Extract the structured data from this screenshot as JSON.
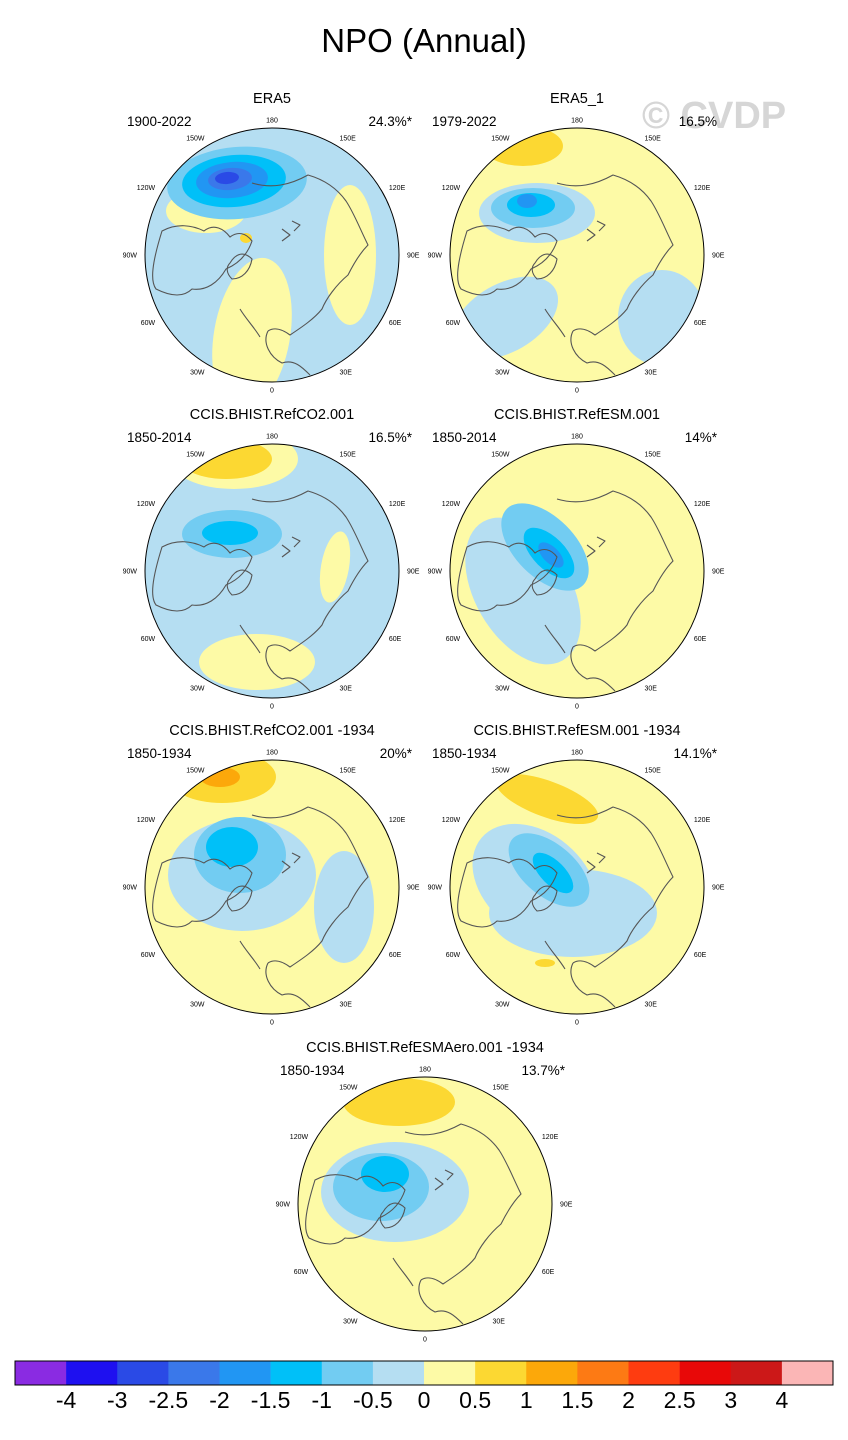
{
  "title": "NPO (Annual)",
  "watermark": "© CVDP",
  "chart_data": {
    "type": "polar-map",
    "variable": "NPO sea level pressure anomaly pattern",
    "season": "Annual",
    "longitude_labels": [
      "180",
      "150E",
      "120E",
      "90E",
      "60E",
      "30E",
      "0",
      "30W",
      "60W",
      "90W",
      "120W",
      "150W"
    ],
    "panels": [
      {
        "id": "era5",
        "title": "ERA5",
        "years": "1900-2022",
        "variance": "24.3%*"
      },
      {
        "id": "era5_1",
        "title": "ERA5_1",
        "years": "1979-2022",
        "variance": "16.5%"
      },
      {
        "id": "refco2",
        "title": "CCIS.BHIST.RefCO2.001",
        "years": "1850-2014",
        "variance": "16.5%*"
      },
      {
        "id": "refesm",
        "title": "CCIS.BHIST.RefESM.001",
        "years": "1850-2014",
        "variance": "14%*"
      },
      {
        "id": "refco2_1934",
        "title": "CCIS.BHIST.RefCO2.001 -1934",
        "years": "1850-1934",
        "variance": "20%*"
      },
      {
        "id": "refesm_1934",
        "title": "CCIS.BHIST.RefESM.001 -1934",
        "years": "1850-1934",
        "variance": "14.1%*"
      },
      {
        "id": "refesmaero_1934",
        "title": "CCIS.BHIST.RefESMAero.001 -1934",
        "years": "1850-1934",
        "variance": "13.7%*"
      }
    ],
    "colorbar": {
      "labels": [
        "-4",
        "-3",
        "-2.5",
        "-2",
        "-1.5",
        "-1",
        "-0.5",
        "0",
        "0.5",
        "1",
        "1.5",
        "2",
        "2.5",
        "3",
        "4"
      ],
      "colors": [
        "#8a2be2",
        "#1e10f0",
        "#2a4ae6",
        "#3a78ea",
        "#2196f3",
        "#00c0f8",
        "#72ccf2",
        "#b5def2",
        "#fdfaa6",
        "#fcd832",
        "#fca80a",
        "#fd7a14",
        "#fe3c10",
        "#e80808",
        "#cc1818",
        "#fbb6b6"
      ]
    }
  }
}
